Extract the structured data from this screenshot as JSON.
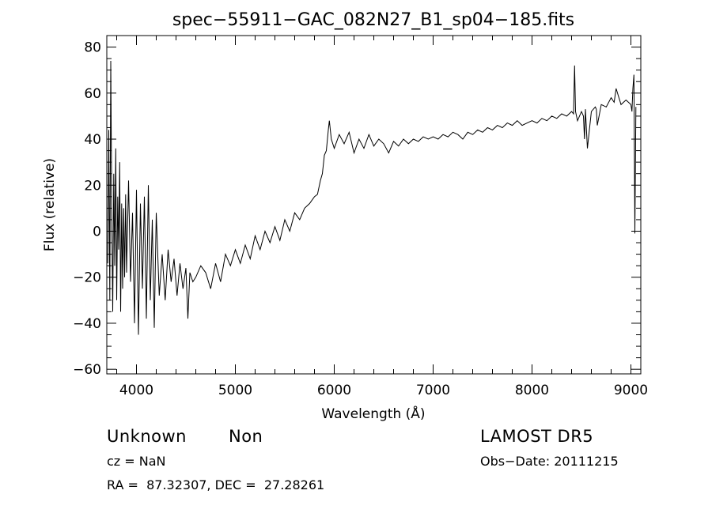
{
  "chart_data": {
    "type": "line",
    "title": "spec−55911−GAC_082N27_B1_sp04−185.fits",
    "xlabel": "Wavelength (Å)",
    "ylabel": "Flux (relative)",
    "xlim": [
      3700,
      9100
    ],
    "ylim": [
      -62,
      85
    ],
    "x_ticks": [
      4000,
      5000,
      6000,
      7000,
      8000,
      9000
    ],
    "x_tick_labels": [
      "4000",
      "5000",
      "6000",
      "7000",
      "8000",
      "9000"
    ],
    "y_ticks": [
      -60,
      -40,
      -20,
      0,
      20,
      40,
      60,
      80
    ],
    "y_tick_labels": [
      "−60",
      "−40",
      "−20",
      "0",
      "20",
      "40",
      "60",
      "80"
    ],
    "grid": false,
    "series": [
      {
        "x": [
          3710,
          3720,
          3730,
          3740,
          3750,
          3760,
          3770,
          3780,
          3790,
          3800,
          3810,
          3820,
          3830,
          3840,
          3850,
          3860,
          3870,
          3880,
          3890,
          3900,
          3920,
          3940,
          3960,
          3980,
          4000,
          4020,
          4040,
          4060,
          4080,
          4100,
          4120,
          4140,
          4160,
          4180,
          4200,
          4230,
          4260,
          4290,
          4320,
          4350,
          4380,
          4410,
          4440,
          4470,
          4500,
          4520,
          4540,
          4570,
          4600,
          4650,
          4700,
          4750,
          4800,
          4850,
          4900,
          4950,
          5000,
          5050,
          5100,
          5150,
          5200,
          5250,
          5300,
          5350,
          5400,
          5450,
          5500,
          5550,
          5600,
          5650,
          5700,
          5750,
          5800,
          5830,
          5860,
          5880,
          5900,
          5920,
          5940,
          5950,
          5970,
          6000,
          6050,
          6100,
          6150,
          6200,
          6250,
          6300,
          6350,
          6400,
          6450,
          6500,
          6550,
          6600,
          6650,
          6700,
          6750,
          6800,
          6850,
          6900,
          6950,
          7000,
          7050,
          7100,
          7150,
          7200,
          7250,
          7300,
          7350,
          7400,
          7450,
          7500,
          7550,
          7600,
          7650,
          7700,
          7750,
          7800,
          7850,
          7900,
          7950,
          8000,
          8050,
          8100,
          8150,
          8200,
          8250,
          8300,
          8350,
          8400,
          8420,
          8430,
          8440,
          8460,
          8500,
          8520,
          8530,
          8540,
          8560,
          8600,
          8640,
          8650,
          8660,
          8700,
          8750,
          8800,
          8830,
          8850,
          8900,
          8950,
          9000,
          9010,
          9020,
          9030,
          9040,
          9045,
          9050
        ],
        "y": [
          -14,
          44,
          -30,
          74,
          8,
          -35,
          25,
          -15,
          36,
          -30,
          15,
          -8,
          30,
          -35,
          12,
          -25,
          10,
          -20,
          16,
          -18,
          22,
          -22,
          8,
          -40,
          18,
          -45,
          12,
          -25,
          15,
          -38,
          20,
          -30,
          5,
          -42,
          8,
          -28,
          -10,
          -30,
          -8,
          -22,
          -12,
          -28,
          -14,
          -25,
          -16,
          -38,
          -18,
          -22,
          -20,
          -15,
          -18,
          -25,
          -14,
          -22,
          -10,
          -15,
          -8,
          -14,
          -6,
          -12,
          -2,
          -8,
          0,
          -5,
          2,
          -4,
          5,
          0,
          8,
          5,
          10,
          12,
          15,
          16,
          22,
          25,
          33,
          35,
          44,
          48,
          40,
          36,
          42,
          38,
          43,
          34,
          40,
          36,
          42,
          37,
          40,
          38,
          34,
          39,
          37,
          40,
          38,
          40,
          39,
          41,
          40,
          41,
          40,
          42,
          41,
          43,
          42,
          40,
          43,
          42,
          44,
          43,
          45,
          44,
          46,
          45,
          47,
          46,
          48,
          46,
          47,
          48,
          47,
          49,
          48,
          50,
          49,
          51,
          50,
          52,
          51,
          72,
          52,
          48,
          52,
          50,
          40,
          53,
          36,
          52,
          54,
          53,
          46,
          55,
          54,
          58,
          56,
          62,
          55,
          57,
          55,
          52,
          62,
          68,
          -1,
          25,
          54
        ]
      }
    ]
  },
  "footer": {
    "object_class": "Unknown",
    "subclass": "Non",
    "redshift": "cz = NaN",
    "coords": "RA =  87.32307, DEC =  27.28261",
    "survey": "LAMOST DR5",
    "obs_date": "Obs−Date: 20111215"
  },
  "colors": {
    "line": "#000000",
    "background": "#ffffff"
  }
}
